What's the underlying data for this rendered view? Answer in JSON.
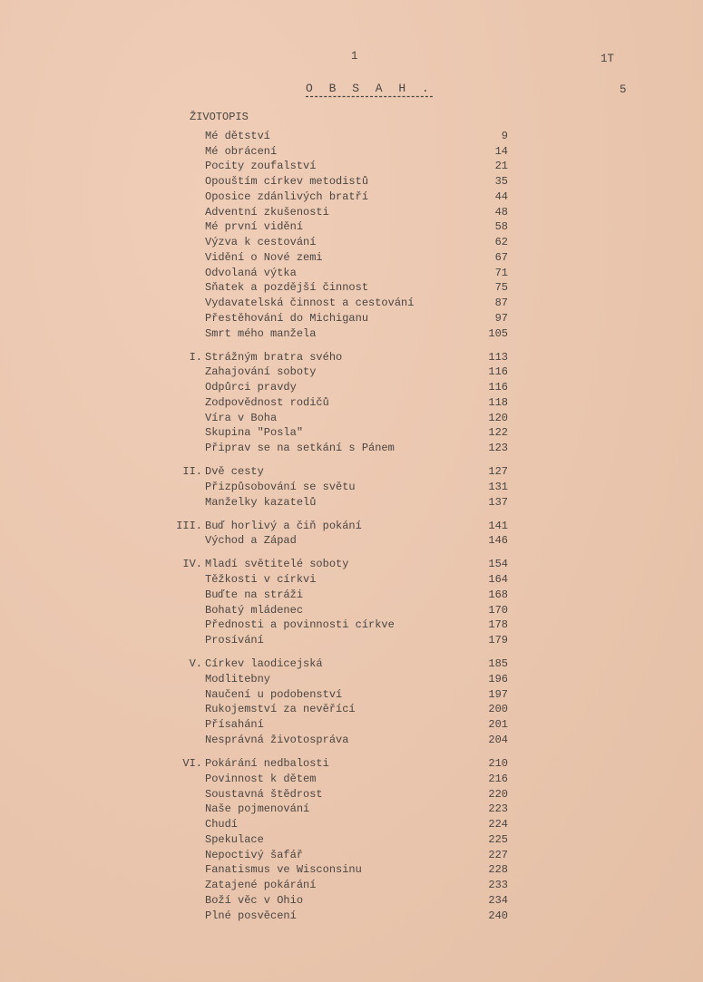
{
  "page_marks": {
    "top_center": "1",
    "top_right": "1T",
    "right_number": "5"
  },
  "title": "O B S A H .",
  "sections": [
    {
      "numeral": "",
      "heading": "ŽIVOTOPIS",
      "entries": [
        {
          "title": "Mé dětství",
          "page": "9"
        },
        {
          "title": "Mé obrácení",
          "page": "14"
        },
        {
          "title": "Pocity zoufalství",
          "page": "21"
        },
        {
          "title": "Opouštím církev metodistů",
          "page": "35"
        },
        {
          "title": "Oposice zdánlivých bratří",
          "page": "44"
        },
        {
          "title": "Adventní zkušenosti",
          "page": "48"
        },
        {
          "title": "Mé první vidění",
          "page": "58"
        },
        {
          "title": "Výzva k cestování",
          "page": "62"
        },
        {
          "title": "Vidění o Nové zemi",
          "page": "67"
        },
        {
          "title": "Odvolaná výtka",
          "page": "71"
        },
        {
          "title": "Sňatek a pozdější činnost",
          "page": "75"
        },
        {
          "title": "Vydavatelská činnost a cestování",
          "page": "87"
        },
        {
          "title": "Přestěhování do Michiganu",
          "page": "97"
        },
        {
          "title": "Smrt mého manžela",
          "page": "105"
        }
      ]
    },
    {
      "numeral": "I.",
      "entries": [
        {
          "title": "Strážným bratra svého",
          "page": "113"
        },
        {
          "title": "Zahajování soboty",
          "page": "116"
        },
        {
          "title": "Odpůrci pravdy",
          "page": "116"
        },
        {
          "title": "Zodpovědnost rodičů",
          "page": "118"
        },
        {
          "title": "Víra v Boha",
          "page": "120"
        },
        {
          "title": "Skupina \"Posla\"",
          "page": "122"
        },
        {
          "title": "Připrav se na setkání s Pánem",
          "page": "123"
        }
      ]
    },
    {
      "numeral": "II.",
      "entries": [
        {
          "title": "Dvě cesty",
          "page": "127"
        },
        {
          "title": "Přizpůsobování se světu",
          "page": "131"
        },
        {
          "title": "Manželky kazatelů",
          "page": "137"
        }
      ]
    },
    {
      "numeral": "III.",
      "entries": [
        {
          "title": "Buď horlivý a čiň pokání",
          "page": "141"
        },
        {
          "title": "Východ a Západ",
          "page": "146"
        }
      ]
    },
    {
      "numeral": "IV.",
      "entries": [
        {
          "title": "Mladí světitelé soboty",
          "page": "154"
        },
        {
          "title": "Těžkosti v církvi",
          "page": "164"
        },
        {
          "title": "Buďte na stráži",
          "page": "168"
        },
        {
          "title": "Bohatý mládenec",
          "page": "170"
        },
        {
          "title": "Přednosti a povinnosti církve",
          "page": "178"
        },
        {
          "title": "Prosívání",
          "page": "179"
        }
      ]
    },
    {
      "numeral": "V.",
      "entries": [
        {
          "title": "Církev laodicejská",
          "page": "185"
        },
        {
          "title": "Modlitebny",
          "page": "196"
        },
        {
          "title": "Naučení u podobenství",
          "page": "197"
        },
        {
          "title": "Rukojemství za nevěřící",
          "page": "200"
        },
        {
          "title": "Přísahání",
          "page": "201"
        },
        {
          "title": "Nesprávná životospráva",
          "page": "204"
        }
      ]
    },
    {
      "numeral": "VI.",
      "entries": [
        {
          "title": "Pokárání nedbalosti",
          "page": "210"
        },
        {
          "title": "Povinnost k dětem",
          "page": "216"
        },
        {
          "title": "Soustavná štědrost",
          "page": "220"
        },
        {
          "title": "Naše pojmenování",
          "page": "223"
        },
        {
          "title": "Chudí",
          "page": "224"
        },
        {
          "title": "Spekulace",
          "page": "225"
        },
        {
          "title": "Nepoctivý šafář",
          "page": "227"
        },
        {
          "title": "Fanatismus ve Wisconsinu",
          "page": "228"
        },
        {
          "title": "Zatajené pokárání",
          "page": "233"
        },
        {
          "title": "Boží věc v Ohio",
          "page": "234"
        },
        {
          "title": "Plné posvěcení",
          "page": "240"
        }
      ]
    }
  ]
}
